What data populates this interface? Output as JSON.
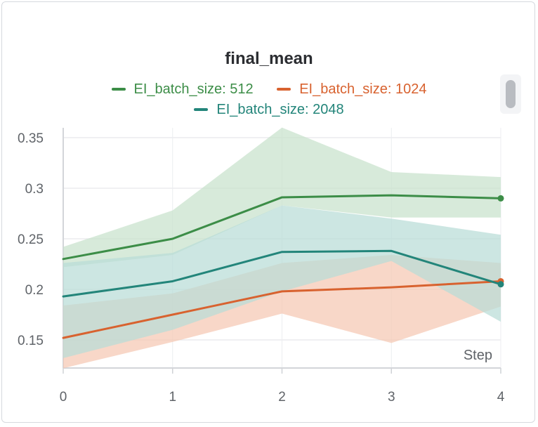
{
  "chart_data": {
    "type": "line",
    "title": "final_mean",
    "xlabel": "Step",
    "ylabel": "",
    "x": [
      0,
      1,
      2,
      3,
      4
    ],
    "xlim": [
      0,
      4
    ],
    "ylim": [
      0.122,
      0.36
    ],
    "xticks": [
      "0",
      "1",
      "2",
      "3",
      "4"
    ],
    "yticks": [
      {
        "value": 0.15,
        "label": "0.15"
      },
      {
        "value": 0.2,
        "label": "0.2"
      },
      {
        "value": 0.25,
        "label": "0.25"
      },
      {
        "value": 0.3,
        "label": "0.3"
      },
      {
        "value": 0.35,
        "label": "0.35"
      }
    ],
    "grid": true,
    "legend_position": "top",
    "series": [
      {
        "name": "EI_batch_size: 512",
        "color": "#3c8d47",
        "fill": "#c7e2cc",
        "values": [
          0.23,
          0.25,
          0.291,
          0.293,
          0.29
        ],
        "upper": [
          0.242,
          0.278,
          0.36,
          0.316,
          0.311
        ],
        "lower": [
          0.222,
          0.234,
          0.283,
          0.271,
          0.271
        ]
      },
      {
        "name": "EI_batch_size: 1024",
        "color": "#d8622f",
        "fill": "#f5c8b3",
        "values": [
          0.152,
          0.175,
          0.198,
          0.202,
          0.208
        ],
        "upper": [
          0.184,
          0.196,
          0.226,
          0.234,
          0.226
        ],
        "lower": [
          0.122,
          0.148,
          0.176,
          0.147,
          0.183
        ]
      },
      {
        "name": "EI_batch_size: 2048",
        "color": "#23857a",
        "fill": "#b9dcd7",
        "values": [
          0.193,
          0.208,
          0.237,
          0.238,
          0.205
        ],
        "upper": [
          0.226,
          0.236,
          0.283,
          0.27,
          0.254
        ],
        "lower": [
          0.132,
          0.16,
          0.198,
          0.228,
          0.168
        ]
      }
    ]
  }
}
